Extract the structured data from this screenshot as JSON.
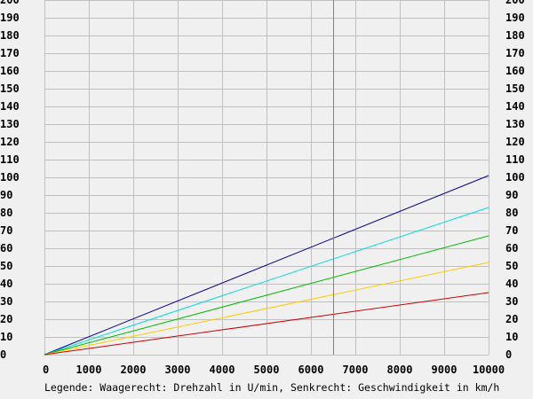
{
  "chart_data": {
    "type": "line",
    "legend_text": "Legende: Waagerecht: Drehzahl in U/min, Senkrecht: Geschwindigkeit in km/h",
    "xlim": [
      0,
      10000
    ],
    "ylim": [
      0,
      200
    ],
    "x_ticks": [
      0,
      1000,
      2000,
      3000,
      4000,
      5000,
      6000,
      7000,
      8000,
      9000,
      10000
    ],
    "y_ticks": [
      0,
      10,
      20,
      30,
      40,
      50,
      60,
      70,
      80,
      90,
      100,
      110,
      120,
      130,
      140,
      150,
      160,
      170,
      180,
      190,
      200
    ],
    "x_tick_labels": [
      "0",
      "1000",
      "2000",
      "3000",
      "4000",
      "5000",
      "6000",
      "7000",
      "8000",
      "9000",
      "10000"
    ],
    "y_tick_labels": [
      "0",
      "10",
      "20",
      "30",
      "40",
      "50",
      "60",
      "70",
      "80",
      "90",
      "100",
      "110",
      "120",
      "130",
      "140",
      "150",
      "160",
      "170",
      "180",
      "190",
      "200"
    ],
    "grid": true,
    "marker_line": {
      "x": 6500,
      "color": "#00dd00"
    },
    "series": [
      {
        "color": "#000099",
        "points": [
          [
            0,
            0
          ],
          [
            10000,
            101
          ]
        ]
      },
      {
        "color": "#00dddd",
        "points": [
          [
            0,
            0
          ],
          [
            10000,
            83
          ]
        ]
      },
      {
        "color": "#00bb00",
        "points": [
          [
            0,
            0
          ],
          [
            10000,
            67
          ]
        ]
      },
      {
        "color": "#ffcc00",
        "points": [
          [
            0,
            0
          ],
          [
            10000,
            52
          ]
        ]
      },
      {
        "color": "#cc0000",
        "points": [
          [
            0,
            0
          ],
          [
            10000,
            35
          ]
        ]
      }
    ]
  }
}
